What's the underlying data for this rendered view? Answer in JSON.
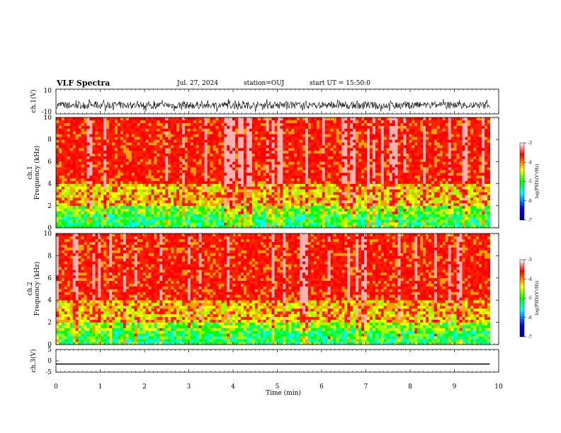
{
  "header": {
    "title": "VLF Spectra",
    "date": "Jul. 27, 2024",
    "station": "station=OUJ",
    "start": "start UT = 15:50:0"
  },
  "chart_data": [
    {
      "type": "line",
      "panel": "ch1-waveform",
      "ylabel": "ch.1(V)",
      "ylim": [
        -10,
        10
      ],
      "y_ticks": [
        "10",
        "-10"
      ],
      "note": "dense noisy waveform centered near -3 V with amplitude roughly ±4 V"
    },
    {
      "type": "heatmap",
      "panel": "ch1-spectrogram",
      "ylabel": "ch.1\nFrequency (kHz)",
      "ylim": [
        0,
        10
      ],
      "y_ticks": [
        "0",
        "2",
        "4",
        "6",
        "8",
        "10"
      ],
      "colorbar": {
        "label": "log(PSD)(V²/Hz)",
        "range": [
          -7,
          -3
        ],
        "ticks": [
          "-3",
          "-4",
          "-5",
          "-6",
          "-7"
        ],
        "colors": [
          "#000080",
          "#0000ff",
          "#00ffff",
          "#00ff00",
          "#ffff00",
          "#ff0000",
          "#ffffff"
        ]
      }
    },
    {
      "type": "heatmap",
      "panel": "ch2-spectrogram",
      "ylabel": "ch.2\nFrequency (kHz)",
      "ylim": [
        0,
        10
      ],
      "y_ticks": [
        "0",
        "2",
        "4",
        "6",
        "8",
        "10"
      ],
      "colorbar": {
        "label": "log(PSD)(V²/Hz)",
        "range": [
          -7,
          -3
        ],
        "ticks": [
          "-3",
          "-4",
          "-5",
          "-6",
          "-7"
        ]
      }
    },
    {
      "type": "line",
      "panel": "ch3-waveform",
      "ylabel": "ch.3(V)",
      "ylim": [
        -5,
        5
      ],
      "y_ticks": [
        "5",
        "0",
        "-5"
      ],
      "x": [
        0,
        9.8
      ],
      "y": [
        -1.4,
        -1.4
      ]
    }
  ],
  "xaxis": {
    "label": "Time (min)",
    "range": [
      0,
      10
    ],
    "ticks": [
      "0",
      "1",
      "2",
      "3",
      "4",
      "5",
      "6",
      "7",
      "8",
      "9",
      "10"
    ]
  }
}
